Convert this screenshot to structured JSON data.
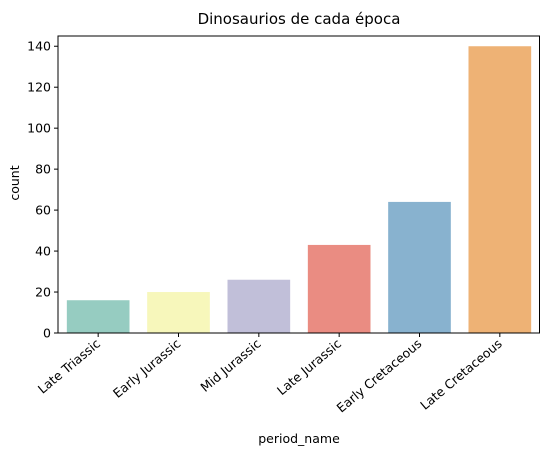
{
  "chart_data": {
    "type": "bar",
    "title": "Dinosaurios de cada época",
    "xlabel": "period_name",
    "ylabel": "count",
    "categories": [
      "Late Triassic",
      "Early Jurassic",
      "Mid Jurassic",
      "Late Jurassic",
      "Early Cretaceous",
      "Late Cretaceous"
    ],
    "values": [
      16,
      20,
      26,
      43,
      64,
      140
    ],
    "colors": [
      "#96ccc1",
      "#f7f7bb",
      "#c1bfd9",
      "#ea8c82",
      "#88b2cf",
      "#eeb275"
    ],
    "ylim": [
      0,
      145
    ],
    "yticks": [
      0,
      20,
      40,
      60,
      80,
      100,
      120,
      140
    ],
    "grid": false,
    "legend": "none"
  }
}
